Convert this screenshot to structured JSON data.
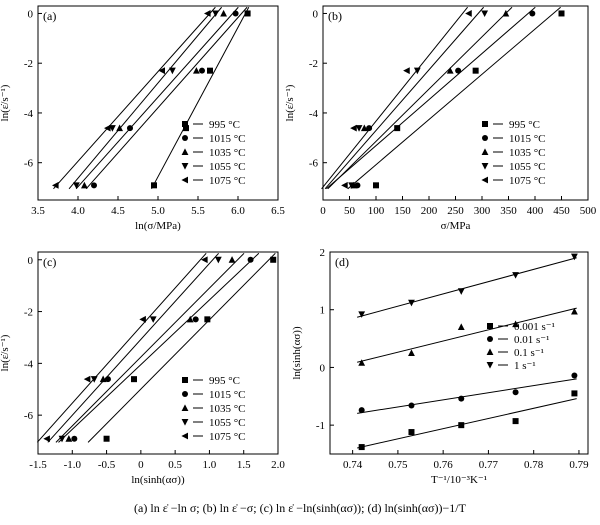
{
  "caption": "(a) ln ε̇ −ln σ; (b) ln ε̇ −σ; (c) ln ε̇ −ln(sinh(ασ)); (d) ln(sinh(ασ))−1/T",
  "chart_data": [
    {
      "type": "scatter",
      "panel": "(a)",
      "xlabel": "ln(σ/MPa)",
      "ylabel": "ln(ε̇/s⁻¹)",
      "xlim": [
        3.5,
        6.5
      ],
      "ylim": [
        -7.5,
        0.3
      ],
      "xticks": [
        "3.5",
        "4.0",
        "4.5",
        "5.0",
        "5.5",
        "6.0",
        "6.5"
      ],
      "yticks": [
        "0",
        "-2",
        "-4",
        "-6"
      ],
      "legend_position": "bottom-right",
      "fit_lines": true,
      "series": [
        {
          "name": "995 °C",
          "marker": "square",
          "x": [
            4.95,
            5.35,
            5.65,
            6.12
          ],
          "y": [
            -6.91,
            -4.61,
            -2.3,
            0
          ]
        },
        {
          "name": "1015 °C",
          "marker": "circle",
          "x": [
            4.2,
            4.65,
            5.55,
            5.97
          ],
          "y": [
            -6.91,
            -4.61,
            -2.3,
            0
          ]
        },
        {
          "name": "1035 °C",
          "marker": "triangle-up",
          "x": [
            4.08,
            4.52,
            5.48,
            5.82
          ],
          "y": [
            -6.91,
            -4.61,
            -2.3,
            0
          ]
        },
        {
          "name": "1055 °C",
          "marker": "triangle-down",
          "x": [
            3.98,
            4.43,
            5.18,
            5.72
          ],
          "y": [
            -6.91,
            -4.61,
            -2.3,
            0
          ]
        },
        {
          "name": "1075 °C",
          "marker": "triangle-left",
          "x": [
            3.72,
            4.37,
            5.05,
            5.62
          ],
          "y": [
            -6.91,
            -4.61,
            -2.3,
            0
          ]
        }
      ]
    },
    {
      "type": "scatter",
      "panel": "(b)",
      "xlabel": "σ/MPa",
      "ylabel": "ln(ε̇/s⁻¹)",
      "xlim": [
        0,
        500
      ],
      "ylim": [
        -7.5,
        0.3
      ],
      "xticks": [
        "0",
        "50",
        "100",
        "150",
        "200",
        "250",
        "300",
        "350",
        "400",
        "450",
        "500"
      ],
      "yticks": [
        "0",
        "-2",
        "-4",
        "-6"
      ],
      "legend_position": "bottom-right",
      "fit_lines": true,
      "series": [
        {
          "name": "995 °C",
          "marker": "square",
          "x": [
            100,
            140,
            288,
            450
          ],
          "y": [
            -6.91,
            -4.61,
            -2.3,
            0
          ]
        },
        {
          "name": "1015 °C",
          "marker": "circle",
          "x": [
            65,
            87,
            255,
            395
          ],
          "y": [
            -6.91,
            -4.61,
            -2.3,
            0
          ]
        },
        {
          "name": "1035 °C",
          "marker": "triangle-up",
          "x": [
            58,
            78,
            240,
            345
          ],
          "y": [
            -6.91,
            -4.61,
            -2.3,
            0
          ]
        },
        {
          "name": "1055 °C",
          "marker": "triangle-down",
          "x": [
            54,
            68,
            178,
            305
          ],
          "y": [
            -6.91,
            -4.61,
            -2.3,
            0
          ]
        },
        {
          "name": "1075 °C",
          "marker": "triangle-left",
          "x": [
            41,
            58,
            158,
            275
          ],
          "y": [
            -6.91,
            -4.61,
            -2.3,
            0
          ]
        }
      ]
    },
    {
      "type": "scatter",
      "panel": "(c)",
      "xlabel": "ln(sinh(ασ))",
      "ylabel": "ln(ε̇/s⁻¹)",
      "xlim": [
        -1.5,
        2.0
      ],
      "ylim": [
        -7.5,
        0.3
      ],
      "xticks": [
        "-1.5",
        "-1.0",
        "-0.5",
        "0",
        "0.5",
        "1.0",
        "1.5",
        "2.0"
      ],
      "yticks": [
        "0",
        "-2",
        "-4",
        "-6"
      ],
      "legend_position": "bottom-right",
      "fit_lines": true,
      "series": [
        {
          "name": "995 °C",
          "marker": "square",
          "x": [
            -0.5,
            -0.1,
            0.97,
            1.93
          ],
          "y": [
            -6.91,
            -4.61,
            -2.3,
            0
          ]
        },
        {
          "name": "1015 °C",
          "marker": "circle",
          "x": [
            -0.97,
            -0.48,
            0.8,
            1.6
          ],
          "y": [
            -6.91,
            -4.61,
            -2.3,
            0
          ]
        },
        {
          "name": "1035 °C",
          "marker": "triangle-up",
          "x": [
            -1.05,
            -0.55,
            0.72,
            1.33
          ],
          "y": [
            -6.91,
            -4.61,
            -2.3,
            0
          ]
        },
        {
          "name": "1055 °C",
          "marker": "triangle-down",
          "x": [
            -1.15,
            -0.68,
            0.18,
            1.13
          ],
          "y": [
            -6.91,
            -4.61,
            -2.3,
            0
          ]
        },
        {
          "name": "1075 °C",
          "marker": "triangle-left",
          "x": [
            -1.37,
            -0.78,
            0.03,
            0.93
          ],
          "y": [
            -6.91,
            -4.61,
            -2.3,
            0
          ]
        }
      ]
    },
    {
      "type": "scatter",
      "panel": "(d)",
      "xlabel": "T⁻¹/10⁻³K⁻¹",
      "ylabel": "ln(sinh(ασ))",
      "xlim": [
        0.735,
        0.792
      ],
      "ylim": [
        -1.5,
        2.0
      ],
      "xticks": [
        "0.74",
        "0.75",
        "0.76",
        "0.77",
        "0.78",
        "0.79"
      ],
      "yticks": [
        "2",
        "1",
        "0",
        "-1"
      ],
      "legend_position": "center-right",
      "fit_lines": true,
      "series": [
        {
          "name": "0.001 s⁻¹",
          "marker": "square",
          "x": [
            0.742,
            0.753,
            0.764,
            0.776,
            0.789
          ],
          "y": [
            -1.38,
            -1.12,
            -1.0,
            -0.93,
            -0.45
          ]
        },
        {
          "name": "0.01 s⁻¹",
          "marker": "circle",
          "x": [
            0.742,
            0.753,
            0.764,
            0.776,
            0.789
          ],
          "y": [
            -0.74,
            -0.66,
            -0.54,
            -0.43,
            -0.14
          ]
        },
        {
          "name": "0.1 s⁻¹",
          "marker": "triangle-up",
          "x": [
            0.742,
            0.753,
            0.764,
            0.776,
            0.789
          ],
          "y": [
            0.08,
            0.25,
            0.7,
            0.75,
            0.97
          ]
        },
        {
          "name": "1 s⁻¹",
          "marker": "triangle-down",
          "x": [
            0.742,
            0.753,
            0.764,
            0.776,
            0.789
          ],
          "y": [
            0.92,
            1.12,
            1.32,
            1.6,
            1.92
          ]
        }
      ]
    }
  ]
}
